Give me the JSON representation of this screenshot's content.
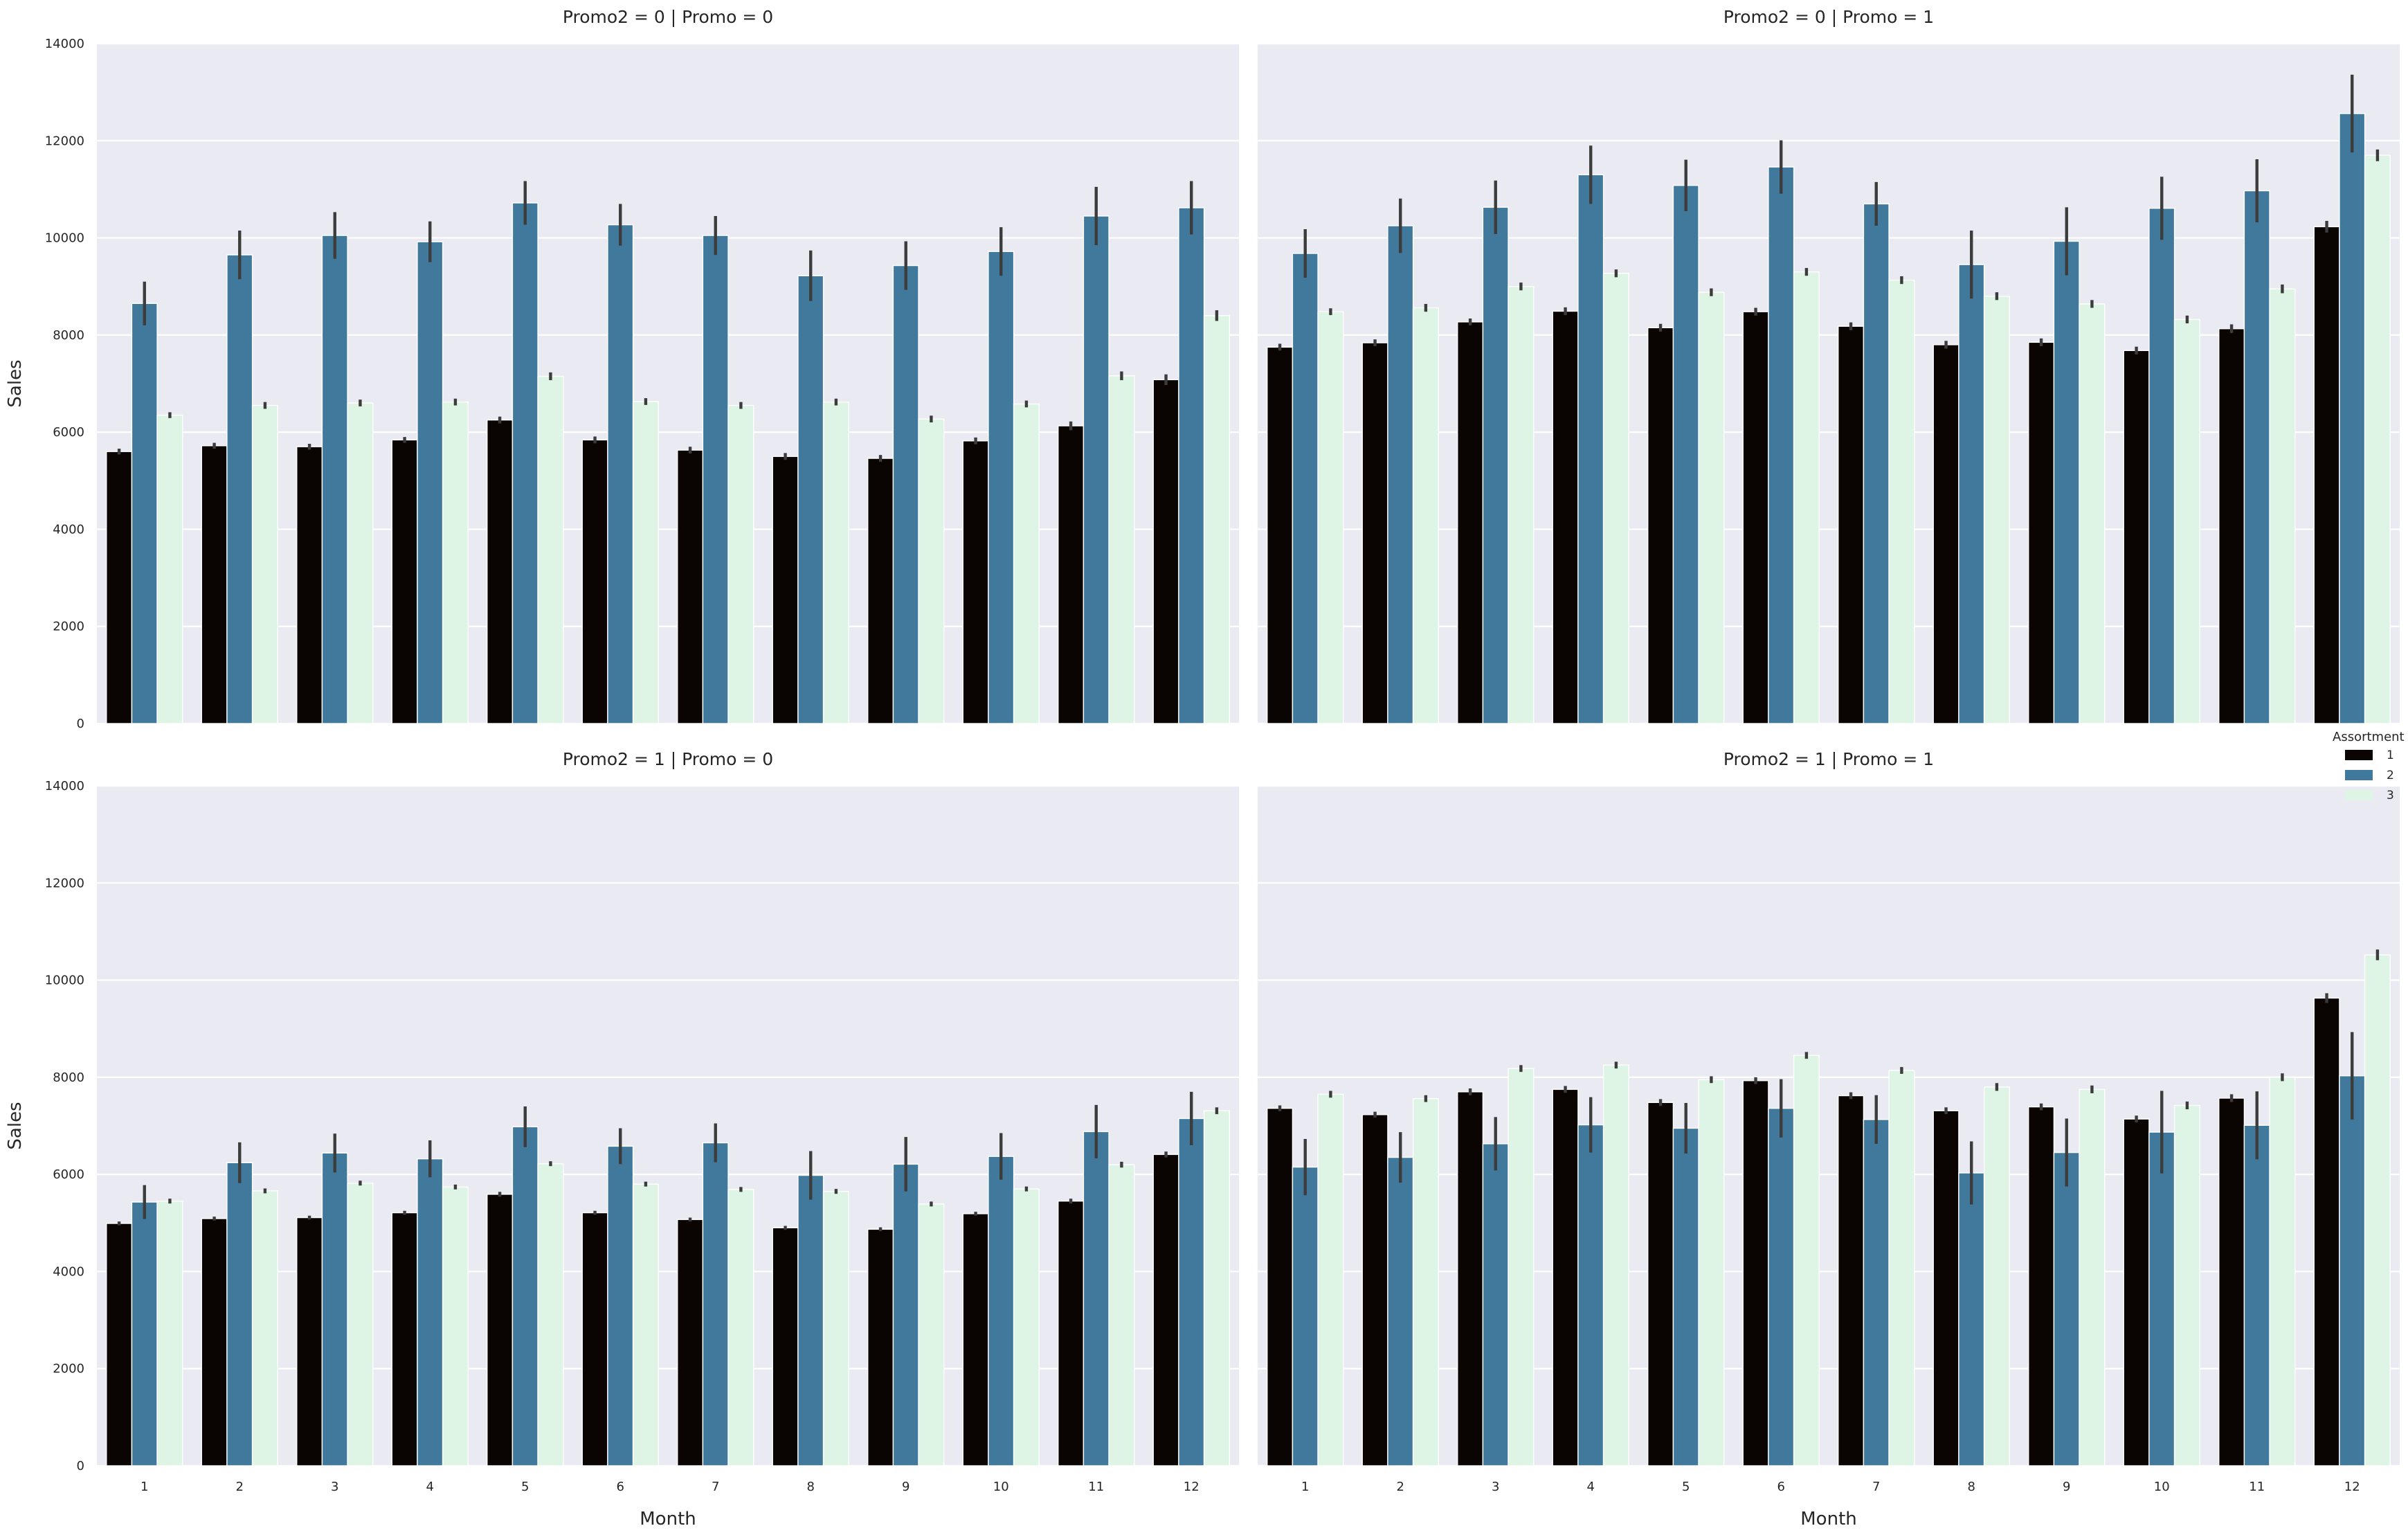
{
  "chart_data": {
    "type": "bar",
    "layout": "faceted grid, 2 rows x 2 columns, shared axes",
    "xlabel": "Month",
    "ylabel": "Sales",
    "ylim": [
      0,
      14000
    ],
    "yticks": [
      0,
      2000,
      4000,
      6000,
      8000,
      10000,
      12000,
      14000
    ],
    "categories": [
      "1",
      "2",
      "3",
      "4",
      "5",
      "6",
      "7",
      "8",
      "9",
      "10",
      "11",
      "12"
    ],
    "grid": true,
    "legend": {
      "title": "Assortment",
      "placement": "right",
      "entries": [
        {
          "label": "1",
          "color": "#0a0403"
        },
        {
          "label": "2",
          "color": "#40799c"
        },
        {
          "label": "3",
          "color": "#def5e5"
        }
      ]
    },
    "facets": [
      {
        "title": "Promo2 = 0 | Promo = 0",
        "series": [
          {
            "name": "1",
            "values": [
              5600,
              5720,
              5700,
              5840,
              6250,
              5840,
              5630,
              5500,
              5460,
              5820,
              6130,
              7080
            ],
            "error": [
              60,
              60,
              60,
              60,
              70,
              70,
              70,
              70,
              70,
              70,
              90,
              110
            ]
          },
          {
            "name": "2",
            "values": [
              8650,
              9650,
              10050,
              9920,
              10720,
              10270,
              10050,
              9220,
              9430,
              9720,
              10450,
              10620
            ],
            "error": [
              450,
              500,
              480,
              420,
              450,
              430,
              400,
              520,
              500,
              500,
              600,
              550
            ]
          },
          {
            "name": "3",
            "values": [
              6350,
              6550,
              6600,
              6620,
              7150,
              6630,
              6550,
              6620,
              6270,
              6580,
              7160,
              8400
            ],
            "error": [
              60,
              70,
              70,
              70,
              80,
              70,
              70,
              70,
              70,
              70,
              90,
              110
            ]
          }
        ]
      },
      {
        "title": "Promo2 = 0 | Promo = 1",
        "series": [
          {
            "name": "1",
            "values": [
              7750,
              7840,
              8270,
              8490,
              8150,
              8480,
              8180,
              7800,
              7850,
              7680,
              8130,
              10230
            ],
            "error": [
              70,
              70,
              70,
              80,
              80,
              80,
              80,
              80,
              80,
              80,
              90,
              120
            ]
          },
          {
            "name": "2",
            "values": [
              9680,
              10250,
              10630,
              11300,
              11080,
              11460,
              10700,
              9450,
              9930,
              10610,
              10970,
              12560
            ],
            "error": [
              500,
              560,
              550,
              600,
              530,
              550,
              450,
              700,
              700,
              650,
              650,
              800
            ]
          },
          {
            "name": "3",
            "values": [
              8480,
              8560,
              9000,
              9270,
              8880,
              9300,
              9130,
              8800,
              8640,
              8320,
              8950,
              11700
            ],
            "error": [
              70,
              80,
              80,
              80,
              80,
              80,
              80,
              80,
              80,
              80,
              90,
              120
            ]
          }
        ]
      },
      {
        "title": "Promo2 = 1 | Promo = 0",
        "series": [
          {
            "name": "1",
            "values": [
              4990,
              5090,
              5110,
              5210,
              5590,
              5210,
              5070,
              4900,
              4870,
              5190,
              5450,
              6410
            ],
            "error": [
              40,
              40,
              40,
              40,
              50,
              40,
              40,
              40,
              40,
              40,
              50,
              60
            ]
          },
          {
            "name": "2",
            "values": [
              5430,
              6240,
              6440,
              6320,
              6980,
              6580,
              6650,
              5980,
              6210,
              6370,
              6880,
              7150
            ],
            "error": [
              350,
              420,
              400,
              380,
              420,
              370,
              400,
              500,
              560,
              480,
              550,
              550
            ]
          },
          {
            "name": "3",
            "values": [
              5450,
              5660,
              5820,
              5740,
              6220,
              5800,
              5690,
              5650,
              5390,
              5700,
              6200,
              7310
            ],
            "error": [
              50,
              50,
              50,
              50,
              50,
              50,
              50,
              50,
              50,
              50,
              60,
              70
            ]
          }
        ]
      },
      {
        "title": "Promo2 = 1 | Promo = 1",
        "series": [
          {
            "name": "1",
            "values": [
              7360,
              7230,
              7700,
              7750,
              7480,
              7930,
              7620,
              7310,
              7390,
              7140,
              7570,
              9630
            ],
            "error": [
              60,
              60,
              70,
              70,
              70,
              70,
              70,
              70,
              70,
              70,
              80,
              100
            ]
          },
          {
            "name": "2",
            "values": [
              6150,
              6350,
              6630,
              7020,
              6950,
              7360,
              7130,
              6030,
              6450,
              6870,
              7010,
              8030
            ],
            "error": [
              580,
              520,
              550,
              570,
              520,
              600,
              500,
              650,
              700,
              850,
              700,
              900
            ]
          },
          {
            "name": "3",
            "values": [
              7650,
              7560,
              8180,
              8250,
              7950,
              8450,
              8140,
              7800,
              7750,
              7420,
              8000,
              10520
            ],
            "error": [
              70,
              70,
              70,
              70,
              70,
              70,
              70,
              80,
              80,
              80,
              80,
              110
            ]
          }
        ]
      }
    ]
  }
}
